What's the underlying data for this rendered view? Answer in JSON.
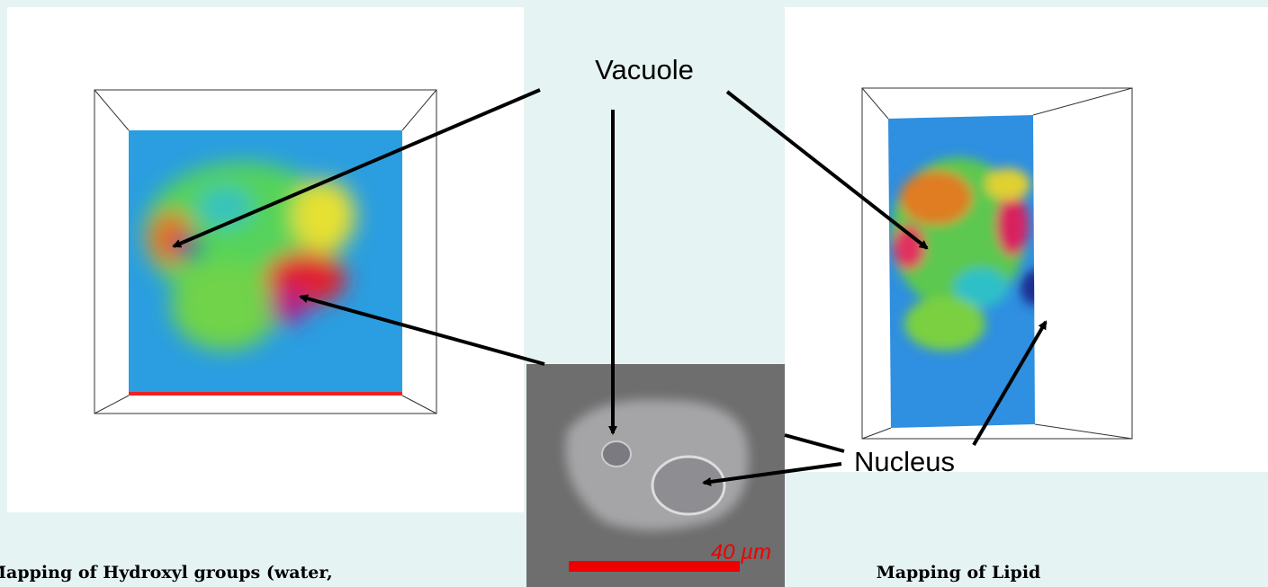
{
  "labels": {
    "vacuole": "Vacuole",
    "nucleus": "Nucleus"
  },
  "scale_bar": {
    "label": "40 µm"
  },
  "captions": {
    "left": "Mapping of Hydroxyl groups (water,",
    "right": "Mapping of Lipid"
  }
}
